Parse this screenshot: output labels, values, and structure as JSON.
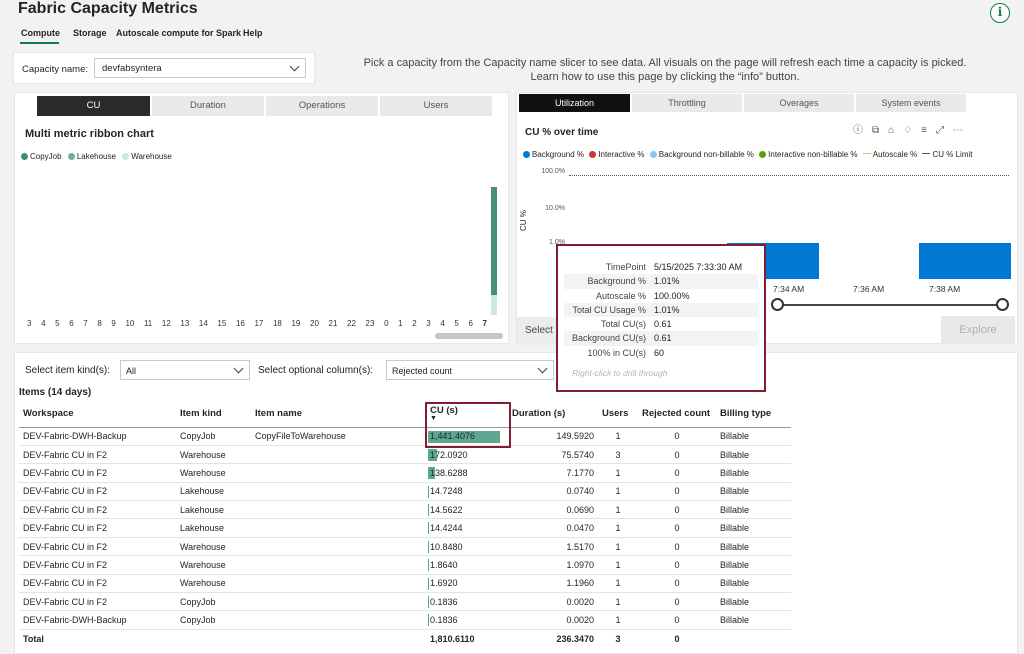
{
  "app": {
    "title": "Fabric Capacity Metrics",
    "info_icon": "i"
  },
  "nav": {
    "tabs": [
      "Compute",
      "Storage",
      "Autoscale compute for Spark",
      "Help"
    ]
  },
  "capacity": {
    "label": "Capacity name:",
    "value": "devfabsyntera"
  },
  "help_text": "Pick a capacity from the Capacity name slicer to see data. All visuals on the page will refresh each time a capacity is picked. Learn how to use this page by clicking the “info” button.",
  "left_panel": {
    "tabs": [
      "CU",
      "Duration",
      "Operations",
      "Users"
    ],
    "title": "Multi metric ribbon chart",
    "legend": [
      {
        "label": "CopyJob",
        "color": "#3e8c74"
      },
      {
        "label": "Lakehouse",
        "color": "#6fb09a"
      },
      {
        "label": "Warehouse",
        "color": "#cde8df"
      }
    ],
    "axis": [
      "3",
      "4",
      "5",
      "6",
      "7",
      "8",
      "9",
      "10",
      "11",
      "12",
      "13",
      "14",
      "15",
      "16",
      "17",
      "18",
      "19",
      "20",
      "21",
      "22",
      "23",
      "0",
      "1",
      "2",
      "3",
      "4",
      "5",
      "6",
      "7"
    ]
  },
  "right_panel": {
    "tabs": [
      "Utilization",
      "Throttling",
      "Overages",
      "System events"
    ],
    "title": "CU % over time",
    "toolbar_icons": [
      "help-icon",
      "copy-icon",
      "pin-icon",
      "bell-icon",
      "filter-icon",
      "focus-icon",
      "more-icon"
    ],
    "legend": [
      {
        "label": "Background %",
        "color": "#0078d4",
        "shape": "dot"
      },
      {
        "label": "Interactive %",
        "color": "#d13438",
        "shape": "dot"
      },
      {
        "label": "Background non-billable %",
        "color": "#8fc3ef",
        "shape": "dot"
      },
      {
        "label": "Interactive non-billable %",
        "color": "#57a300",
        "shape": "dot"
      },
      {
        "label": "Autoscale %",
        "color": "#f2b36b",
        "shape": "line"
      },
      {
        "label": "CU % Limit",
        "color": "#555555",
        "shape": "line"
      }
    ],
    "ylabel": "CU %",
    "yticks": [
      "100.0%",
      "10.0%",
      "1.0%"
    ],
    "xticks": [
      "7:34 AM",
      "7:36 AM",
      "7:38 AM"
    ],
    "select_label": "Select",
    "explore_label": "Explore"
  },
  "tooltip": {
    "rows": [
      {
        "key": "TimePoint",
        "value": "5/15/2025 7:33:30 AM"
      },
      {
        "key": "Background %",
        "value": "1.01%"
      },
      {
        "key": "Autoscale %",
        "value": "100.00%"
      },
      {
        "key": "Total CU Usage %",
        "value": "1.01%"
      },
      {
        "key": "Total CU(s)",
        "value": "0.61"
      },
      {
        "key": "Background CU(s)",
        "value": "0.61"
      },
      {
        "key": "100% in CU(s)",
        "value": "60"
      }
    ],
    "drill": "Right-click to drill through"
  },
  "filters": {
    "kind_label": "Select item kind(s):",
    "kind_value": "All",
    "col_label": "Select optional column(s):",
    "col_value": "Rejected count"
  },
  "items": {
    "title": "Items (14 days)",
    "columns": [
      "Workspace",
      "Item kind",
      "Item name",
      "CU (s)",
      "Duration (s)",
      "Users",
      "Rejected count",
      "Billing type"
    ],
    "rows": [
      [
        "DEV-Fabric-DWH-Backup",
        "CopyJob",
        "CopyFileToWarehouse",
        "1,441.4076",
        "149.5920",
        "1",
        "0",
        "Billable"
      ],
      [
        "DEV-Fabric CU in F2",
        "Warehouse",
        "",
        "172.0920",
        "75.5740",
        "3",
        "0",
        "Billable"
      ],
      [
        "DEV-Fabric CU in F2",
        "Warehouse",
        "",
        "138.6288",
        "7.1770",
        "1",
        "0",
        "Billable"
      ],
      [
        "DEV-Fabric CU in F2",
        "Lakehouse",
        "",
        "14.7248",
        "0.0740",
        "1",
        "0",
        "Billable"
      ],
      [
        "DEV-Fabric CU in F2",
        "Lakehouse",
        "",
        "14.5622",
        "0.0690",
        "1",
        "0",
        "Billable"
      ],
      [
        "DEV-Fabric CU in F2",
        "Lakehouse",
        "",
        "14.4244",
        "0.0470",
        "1",
        "0",
        "Billable"
      ],
      [
        "DEV-Fabric CU in F2",
        "Warehouse",
        "",
        "10.8480",
        "1.5170",
        "1",
        "0",
        "Billable"
      ],
      [
        "DEV-Fabric CU in F2",
        "Warehouse",
        "",
        "1.8640",
        "1.0970",
        "1",
        "0",
        "Billable"
      ],
      [
        "DEV-Fabric CU in F2",
        "Warehouse",
        "",
        "1.6920",
        "1.1960",
        "1",
        "0",
        "Billable"
      ],
      [
        "DEV-Fabric CU in F2",
        "CopyJob",
        "",
        "0.1836",
        "0.0020",
        "1",
        "0",
        "Billable"
      ],
      [
        "DEV-Fabric-DWH-Backup",
        "CopyJob",
        "",
        "0.1836",
        "0.0020",
        "1",
        "0",
        "Billable"
      ]
    ],
    "total": [
      "Total",
      "",
      "",
      "1,810.6110",
      "236.3470",
      "3",
      "0",
      ""
    ]
  }
}
